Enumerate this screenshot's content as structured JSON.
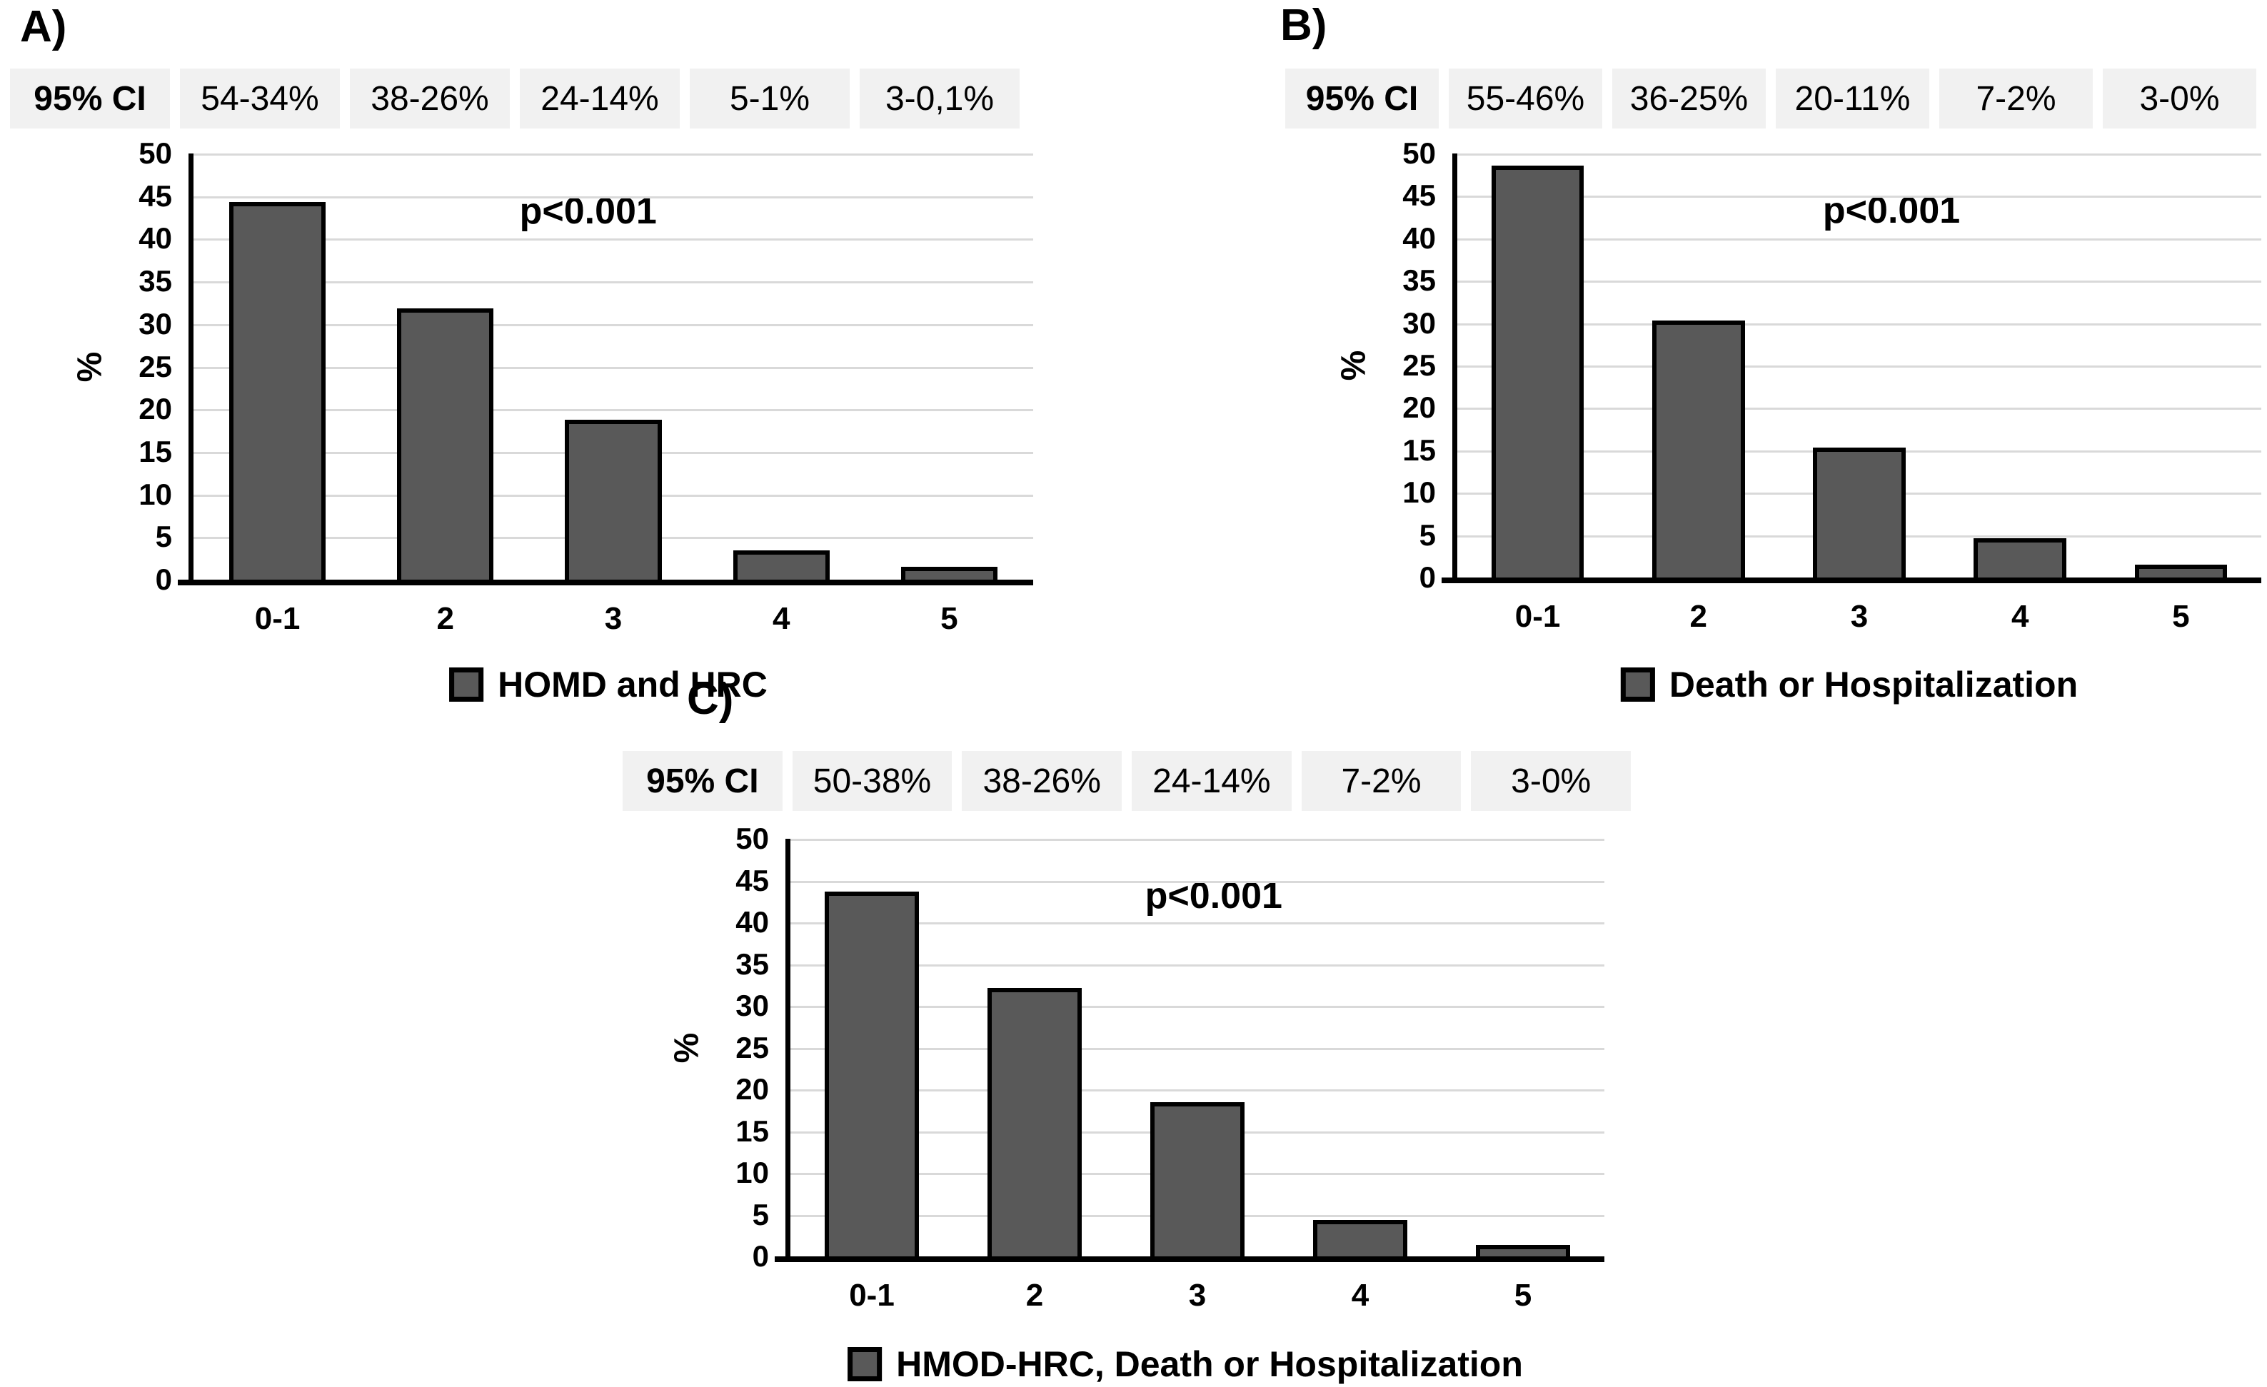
{
  "colors": {
    "bar_fill": "#595959",
    "bar_border": "#000000",
    "header_cell_bg": "#f1f1f1",
    "gridline": "#d9d9d9",
    "axis": "#000000"
  },
  "chart_data": [
    {
      "type": "bar",
      "panel_label": "A)",
      "ci_header": {
        "title": "95% CI",
        "ranges": [
          "54-34%",
          "38-26%",
          "24-14%",
          "5-1%",
          "3-0,1%"
        ]
      },
      "categories": [
        "0-1",
        "2",
        "3",
        "4",
        "5"
      ],
      "values": [
        44.3,
        31.8,
        18.8,
        3.4,
        1.5
      ],
      "annotation": "p<0.001",
      "legend": "HOMD and HRC",
      "ylabel": "%",
      "ylim": [
        0,
        50
      ],
      "ytick_step": 5,
      "grid": true,
      "legend_position": "bottom"
    },
    {
      "type": "bar",
      "panel_label": "B)",
      "ci_header": {
        "title": "95% CI",
        "ranges": [
          "55-46%",
          "36-25%",
          "20-11%",
          "7-2%",
          "3-0%"
        ]
      },
      "categories": [
        "0-1",
        "2",
        "3",
        "4",
        "5"
      ],
      "values": [
        48.6,
        30.3,
        15.3,
        4.6,
        1.5
      ],
      "annotation": "p<0.001",
      "legend": "Death or Hospitalization",
      "ylabel": "%",
      "ylim": [
        0,
        50
      ],
      "ytick_step": 5,
      "grid": true,
      "legend_position": "bottom"
    },
    {
      "type": "bar",
      "panel_label": "C)",
      "ci_header": {
        "title": "95% CI",
        "ranges": [
          "50-38%",
          "38-26%",
          "24-14%",
          "7-2%",
          "3-0%"
        ]
      },
      "categories": [
        "0-1",
        "2",
        "3",
        "4",
        "5"
      ],
      "values": [
        43.7,
        32.1,
        18.5,
        4.4,
        1.4
      ],
      "annotation": "p<0.001",
      "legend": "HMOD-HRC, Death or Hospitalization",
      "ylabel": "%",
      "ylim": [
        0,
        50
      ],
      "ytick_step": 5,
      "grid": true,
      "legend_position": "bottom"
    }
  ]
}
